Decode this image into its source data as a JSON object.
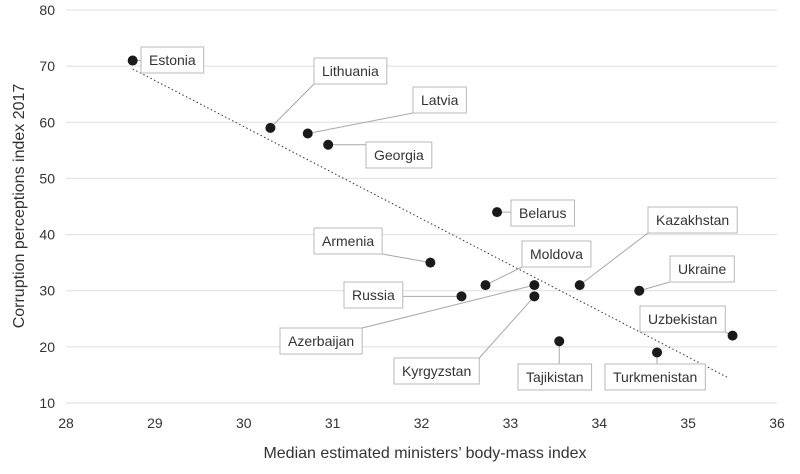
{
  "chart_data": {
    "type": "scatter",
    "title": "",
    "xlabel": "Median estimated ministers’ body-mass index",
    "ylabel": "Corruption perceptions index 2017",
    "xlim": [
      28,
      36
    ],
    "ylim": [
      10,
      80
    ],
    "xticks": [
      "28",
      "29",
      "30",
      "31",
      "32",
      "33",
      "34",
      "35",
      "36"
    ],
    "yticks": [
      "10",
      "20",
      "30",
      "40",
      "50",
      "60",
      "70",
      "80"
    ],
    "grid": "horizontal",
    "trendline": {
      "style": "dotted",
      "from": {
        "x": 28.75,
        "y": 69.5
      },
      "to": {
        "x": 35.45,
        "y": 14.5
      }
    },
    "points": [
      {
        "name": "Estonia",
        "x": 28.75,
        "y": 71
      },
      {
        "name": "Lithuania",
        "x": 30.3,
        "y": 59
      },
      {
        "name": "Latvia",
        "x": 30.72,
        "y": 58
      },
      {
        "name": "Georgia",
        "x": 30.95,
        "y": 56
      },
      {
        "name": "Belarus",
        "x": 32.85,
        "y": 44
      },
      {
        "name": "Armenia",
        "x": 32.1,
        "y": 35
      },
      {
        "name": "Moldova",
        "x": 32.72,
        "y": 31
      },
      {
        "name": "Russia",
        "x": 32.45,
        "y": 29
      },
      {
        "name": "Azerbaijan",
        "x": 33.27,
        "y": 31
      },
      {
        "name": "Kyrgyzstan",
        "x": 33.27,
        "y": 29
      },
      {
        "name": "Kazakhstan",
        "x": 33.78,
        "y": 31
      },
      {
        "name": "Tajikistan",
        "x": 33.55,
        "y": 21
      },
      {
        "name": "Ukraine",
        "x": 34.45,
        "y": 30
      },
      {
        "name": "Turkmenistan",
        "x": 34.65,
        "y": 19
      },
      {
        "name": "Uzbekistan",
        "x": 35.5,
        "y": 22
      }
    ]
  }
}
